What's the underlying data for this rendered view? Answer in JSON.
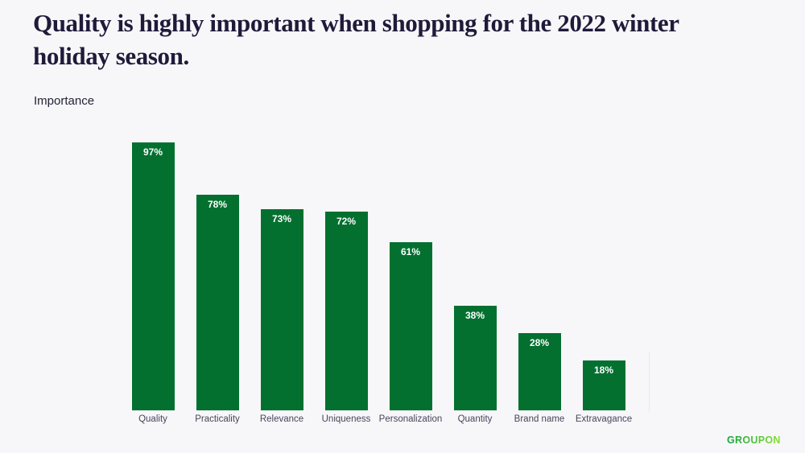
{
  "header": {
    "title_lines": [
      "Quality is highly important when shopping for the 2022 winter",
      "holiday season."
    ],
    "importance_label": "Importance"
  },
  "chart_data": {
    "type": "bar",
    "title": "Quality is highly important when shopping for the 2022 winter holiday season.",
    "axis_note": "Importance",
    "categories": [
      "Quality",
      "Practicality",
      "Relevance",
      "Uniqueness",
      "Personalization",
      "Quantity",
      "Brand name",
      "Extravagance"
    ],
    "values": [
      97,
      78,
      73,
      72,
      61,
      38,
      28,
      18
    ],
    "value_suffix": "%",
    "ylim": [
      0,
      100
    ],
    "grid": false,
    "legend": "none",
    "bar_color": "#03702f",
    "value_label_color": "#ffffff",
    "category_label_color": "#45455a"
  },
  "branding": {
    "logo_text": "GROUPON",
    "logo_gradient_start": "#11a23c",
    "logo_gradient_end": "#86e12f"
  }
}
